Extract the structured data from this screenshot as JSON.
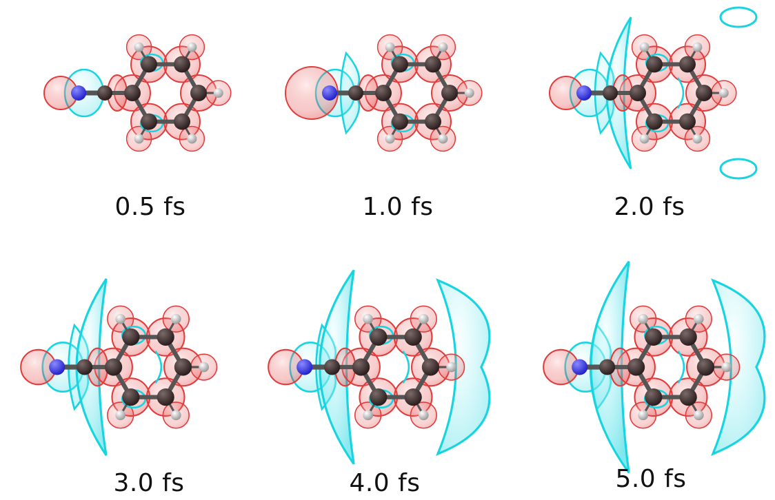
{
  "figure": {
    "panels": [
      {
        "id": "p1",
        "label": "0.5 fs"
      },
      {
        "id": "p2",
        "label": "1.0 fs"
      },
      {
        "id": "p3",
        "label": "2.0 fs"
      },
      {
        "id": "p4",
        "label": "3.0 fs"
      },
      {
        "id": "p5",
        "label": "4.0 fs"
      },
      {
        "id": "p6",
        "label": "5.0 fs"
      }
    ],
    "colors": {
      "positive_isosurface": "#e23b3b",
      "negative_isosurface": "#18d4e0",
      "carbon_atom": "#2b1d1d",
      "nitrogen_atom": "#2222cc",
      "hydrogen_atom": "#e8e8e8",
      "bond": "#555555"
    }
  }
}
